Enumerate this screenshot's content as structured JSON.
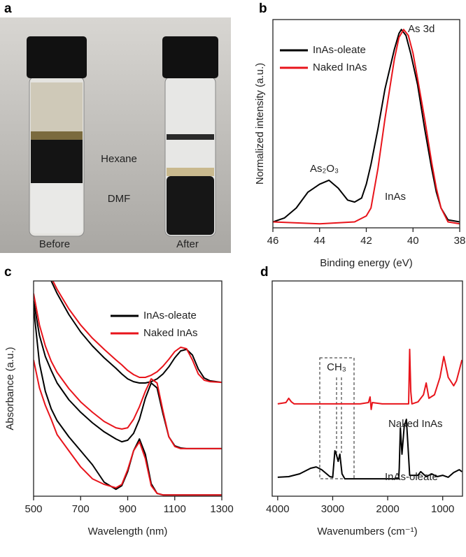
{
  "photo": {
    "panel_label": "a",
    "hexane": "Hexane",
    "dmf": "DMF",
    "before": "Before",
    "after": "After"
  },
  "chart_data": [
    {
      "type": "line",
      "panel_label": "b",
      "xlabel": "Binding energy (eV)",
      "ylabel": "Normalized intensity (a.u.)",
      "xlim": [
        46,
        38
      ],
      "xticks": [
        46,
        44,
        42,
        40,
        38
      ],
      "ylim": [
        0,
        1.05
      ],
      "legend": "upper left",
      "annotations": [
        "As 3d",
        "As₂O₃",
        "InAs"
      ],
      "series": [
        {
          "name": "InAs-oleate",
          "color": "#000000",
          "x": [
            46,
            45.5,
            45,
            44.5,
            44,
            43.6,
            43.2,
            42.8,
            42.5,
            42.2,
            42,
            41.8,
            41.5,
            41.2,
            41,
            40.8,
            40.6,
            40.5,
            40.3,
            40.1,
            39.8,
            39.5,
            39.2,
            39,
            38.8,
            38.5,
            38
          ],
          "values": [
            0.03,
            0.05,
            0.1,
            0.18,
            0.22,
            0.24,
            0.2,
            0.14,
            0.13,
            0.15,
            0.22,
            0.32,
            0.5,
            0.7,
            0.8,
            0.9,
            0.98,
            1.0,
            0.97,
            0.88,
            0.72,
            0.5,
            0.3,
            0.18,
            0.1,
            0.04,
            0.03
          ]
        },
        {
          "name": "Naked InAs",
          "color": "#e8141b",
          "x": [
            46,
            44,
            42.5,
            42,
            41.8,
            41.5,
            41.2,
            41,
            40.8,
            40.6,
            40.4,
            40.2,
            40,
            39.8,
            39.5,
            39.2,
            39,
            38.8,
            38.5,
            38
          ],
          "values": [
            0.03,
            0.02,
            0.03,
            0.06,
            0.1,
            0.3,
            0.55,
            0.7,
            0.85,
            0.96,
            1.0,
            0.97,
            0.88,
            0.75,
            0.55,
            0.33,
            0.2,
            0.1,
            0.03,
            0.02
          ]
        }
      ]
    },
    {
      "type": "line",
      "panel_label": "c",
      "xlabel": "Wavelength (nm)",
      "ylabel": "Absorbance (a.u.)",
      "xlim": [
        500,
        1300
      ],
      "xticks": [
        500,
        700,
        900,
        1100,
        1300
      ],
      "ylim": [
        0,
        10
      ],
      "legend": "upper right",
      "x": [
        500,
        525,
        550,
        575,
        600,
        650,
        700,
        750,
        800,
        850,
        875,
        900,
        925,
        950,
        975,
        1000,
        1025,
        1050,
        1075,
        1100,
        1125,
        1150,
        1175,
        1200,
        1225,
        1250,
        1300
      ],
      "series": [
        {
          "name": "InAs-oleate",
          "color": "#000000",
          "curves": [
            [
              12.01,
              11.2,
              10.55,
              10.0,
              9.42,
              8.44,
              7.63,
              6.98,
              6.43,
              5.94,
              5.68,
              5.45,
              5.32,
              5.26,
              5.26,
              5.32,
              5.45,
              5.68,
              6.01,
              6.43,
              6.75,
              6.82,
              6.56,
              5.91,
              5.49,
              5.36,
              5.29
            ],
            [
              9.09,
              7.47,
              6.49,
              5.84,
              5.26,
              4.48,
              3.9,
              3.41,
              2.99,
              2.66,
              2.53,
              2.6,
              2.92,
              3.57,
              4.55,
              5.26,
              5.03,
              3.83,
              2.76,
              2.34,
              2.24,
              2.21,
              2.21,
              2.21,
              2.21,
              2.21,
              2.21
            ],
            [
              8.77,
              6.17,
              4.87,
              4.06,
              3.51,
              2.76,
              2.11,
              1.46,
              0.65,
              0.32,
              0.49,
              1.14,
              2.11,
              2.66,
              1.95,
              0.58,
              0.13,
              0.06,
              0.06,
              0.06,
              0.06,
              0.06,
              0.06,
              0.06,
              0.06,
              0.06,
              0.06
            ]
          ]
        },
        {
          "name": "Naked InAs",
          "color": "#e8141b",
          "curves": [
            [
              12.18,
              11.36,
              10.71,
              10.16,
              9.61,
              8.7,
              7.95,
              7.34,
              6.82,
              6.33,
              6.1,
              5.84,
              5.65,
              5.52,
              5.52,
              5.62,
              5.78,
              6.04,
              6.36,
              6.72,
              6.92,
              6.85,
              6.33,
              5.68,
              5.39,
              5.32,
              5.29
            ],
            [
              9.42,
              7.95,
              6.98,
              6.27,
              5.75,
              5.0,
              4.38,
              3.9,
              3.47,
              3.18,
              3.12,
              3.18,
              3.57,
              4.16,
              4.87,
              5.45,
              5.26,
              3.96,
              2.76,
              2.31,
              2.21,
              2.21,
              2.21,
              2.21,
              2.21,
              2.21,
              2.21
            ],
            [
              6.33,
              5.03,
              4.22,
              3.57,
              2.86,
              2.11,
              1.36,
              0.81,
              0.55,
              0.39,
              0.55,
              1.23,
              2.11,
              2.53,
              1.75,
              0.49,
              0.13,
              0.06,
              0.06,
              0.06,
              0.06,
              0.06,
              0.06,
              0.06,
              0.06,
              0.06,
              0.06
            ]
          ]
        }
      ]
    },
    {
      "type": "line",
      "panel_label": "d",
      "xlabel": "Wavenumbers (cm⁻¹)",
      "xlim": [
        4100,
        640
      ],
      "xticks": [
        4000,
        3000,
        2000,
        1000
      ],
      "ylim": [
        0,
        10
      ],
      "legend": "none",
      "annotations": [
        "CH₃"
      ],
      "series": [
        {
          "name": "Naked InAs",
          "color": "#e8141b",
          "x": [
            4000,
            3850,
            3800,
            3750,
            3700,
            3500,
            3000,
            2500,
            2350,
            2320,
            2300,
            2280,
            2100,
            1800,
            1620,
            1600,
            1580,
            1560,
            1450,
            1350,
            1300,
            1250,
            1150,
            1050,
            980,
            900,
            800,
            750,
            700,
            650
          ],
          "values": [
            4.29,
            4.35,
            4.55,
            4.38,
            4.29,
            4.29,
            4.29,
            4.29,
            4.35,
            4.61,
            4.03,
            4.35,
            4.29,
            4.29,
            4.29,
            6.82,
            4.87,
            4.29,
            4.38,
            4.71,
            5.26,
            4.55,
            4.71,
            5.52,
            6.49,
            5.52,
            5.13,
            5.36,
            5.84,
            6.33
          ]
        },
        {
          "name": "InAs-oleate",
          "color": "#000000",
          "x": [
            4000,
            3800,
            3600,
            3400,
            3300,
            3200,
            3050,
            3000,
            2960,
            2935,
            2900,
            2870,
            2830,
            2780,
            2000,
            1800,
            1790,
            1770,
            1740,
            1700,
            1660,
            1630,
            1600,
            1450,
            1400,
            1300,
            1200,
            1100,
            1000,
            900,
            800,
            700,
            650
          ],
          "values": [
            0.88,
            0.91,
            1.04,
            1.3,
            1.36,
            1.23,
            0.91,
            0.88,
            2.11,
            1.95,
            1.62,
            1.95,
            1.04,
            0.81,
            0.81,
            0.81,
            1.3,
            3.18,
            1.95,
            3.25,
            3.57,
            2.27,
            0.97,
            0.97,
            1.14,
            0.91,
            1.04,
            0.91,
            0.97,
            0.88,
            1.1,
            1.23,
            1.14
          ]
        }
      ]
    }
  ]
}
